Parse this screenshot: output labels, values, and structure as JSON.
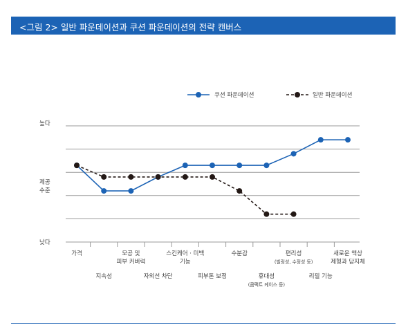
{
  "header": {
    "title": "<그림 2> 일반 파운데이션과 쿠션 파운데이션의 전략 캔버스"
  },
  "chart_data": {
    "type": "line",
    "categories": [
      [
        "가격"
      ],
      [
        "지속성"
      ],
      [
        "모공 및",
        "피부 커버력"
      ],
      [
        "자외선 차단"
      ],
      [
        "스킨케어 · 미백",
        "기능"
      ],
      [
        "피부톤 보정"
      ],
      [
        "수분감"
      ],
      [
        "휴대성",
        "(콤팩트 케이스 등)"
      ],
      [
        "편리성",
        "(빌링성, 수정성 등)"
      ],
      [
        "리필 기능"
      ],
      [
        "새로운 액상",
        "제형과 담지체"
      ]
    ],
    "y_axis": {
      "levels": [
        "낮다",
        "제공 수준",
        "높다"
      ],
      "high_label": "높다",
      "mid_label": [
        "제공",
        "수준"
      ],
      "low_label": "낮다",
      "ylim": [
        0,
        6
      ],
      "gridlines": [
        1,
        2,
        3,
        4,
        5
      ]
    },
    "series": [
      {
        "name": "쿠션 파운데이션",
        "color": "#1c63b5",
        "style": "solid",
        "values": [
          3.3,
          2.2,
          2.2,
          2.8,
          3.3,
          3.3,
          3.3,
          3.3,
          3.8,
          4.4,
          4.4
        ]
      },
      {
        "name": "일반 파운데이션",
        "color": "#231815",
        "style": "dashed",
        "values": [
          3.3,
          2.8,
          2.8,
          2.8,
          2.8,
          2.8,
          2.2,
          1.2,
          1.2,
          null,
          null
        ]
      }
    ],
    "legend_position": "top-right"
  }
}
